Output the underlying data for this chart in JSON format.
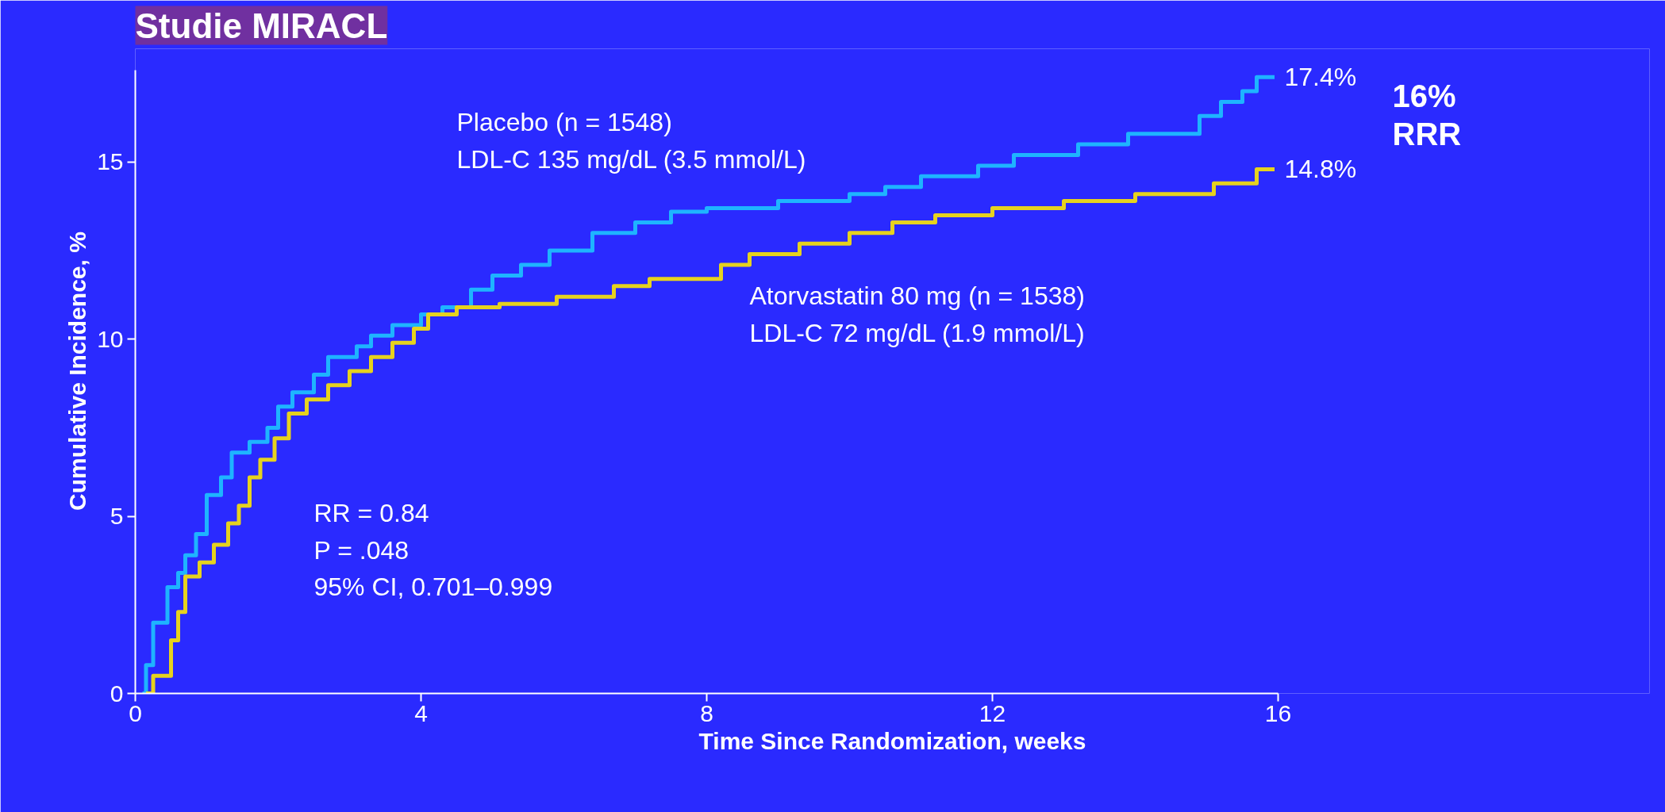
{
  "chart_data": {
    "type": "step",
    "title": "Studie MIRACL",
    "xlabel": "Time Since Randomization, weeks",
    "ylabel": "Cumulative Incidence, %",
    "xlim": [
      0,
      16
    ],
    "xticks": [
      0,
      4,
      8,
      12,
      16
    ],
    "ylim": [
      0,
      17.6
    ],
    "yticks": [
      0,
      5,
      10,
      15
    ],
    "grid": false,
    "line_style": "solid",
    "marker": "none",
    "series": [
      {
        "name": "Placebo (n = 1548)\nLDL-C 135 mg/dL (3.5 mmol/L)",
        "color": "#1eb4ff",
        "x": [
          0.1,
          0.15,
          0.25,
          0.45,
          0.6,
          0.7,
          0.85,
          1.0,
          1.2,
          1.35,
          1.6,
          1.85,
          2.0,
          2.2,
          2.5,
          2.7,
          3.1,
          3.3,
          3.6,
          4.0,
          4.3,
          4.7,
          5.0,
          5.4,
          5.8,
          6.4,
          7.0,
          7.5,
          8.0,
          9.0,
          10.0,
          10.5,
          11.0,
          11.8,
          12.3,
          13.2,
          13.9,
          14.9,
          15.2,
          15.5,
          15.7,
          15.95
        ],
        "values": [
          0,
          0.8,
          2,
          3,
          3.4,
          3.9,
          4.5,
          5.6,
          6.1,
          6.8,
          7.1,
          7.5,
          8.1,
          8.5,
          9.0,
          9.5,
          9.8,
          10.1,
          10.4,
          10.7,
          10.9,
          11.4,
          11.8,
          12.1,
          12.5,
          13.0,
          13.3,
          13.6,
          13.7,
          13.9,
          14.1,
          14.3,
          14.6,
          14.9,
          15.2,
          15.5,
          15.8,
          16.3,
          16.7,
          17.0,
          17.4,
          17.4
        ]
      },
      {
        "name": "Atorvastatin 80 mg (n = 1538)\nLDL-C 72 mg/dL (1.9 mmol/L)",
        "color": "#e6d21e",
        "x": [
          0.15,
          0.25,
          0.5,
          0.6,
          0.7,
          0.9,
          1.1,
          1.3,
          1.45,
          1.6,
          1.75,
          1.95,
          2.15,
          2.4,
          2.7,
          3.0,
          3.3,
          3.6,
          3.9,
          4.1,
          4.5,
          5.1,
          5.9,
          6.7,
          7.2,
          8.2,
          8.6,
          9.3,
          10.0,
          10.6,
          11.2,
          12.0,
          13.0,
          14.0,
          15.1,
          15.7,
          15.95
        ],
        "values": [
          0,
          0.5,
          1.5,
          2.3,
          3.3,
          3.7,
          4.2,
          4.8,
          5.3,
          6.1,
          6.6,
          7.2,
          7.9,
          8.3,
          8.7,
          9.1,
          9.5,
          9.9,
          10.3,
          10.7,
          10.9,
          11.0,
          11.2,
          11.5,
          11.7,
          12.1,
          12.4,
          12.7,
          13.0,
          13.3,
          13.5,
          13.7,
          13.9,
          14.1,
          14.4,
          14.8,
          14.8
        ]
      }
    ],
    "annotations": [
      {
        "text": "17.4%",
        "x": 16,
        "y": 17.4
      },
      {
        "text": "14.8%",
        "x": 16,
        "y": 14.8
      },
      "RR = 0.84\nP = .048\n95% CI, 0.701–0.999",
      "16%\nRRR"
    ]
  }
}
